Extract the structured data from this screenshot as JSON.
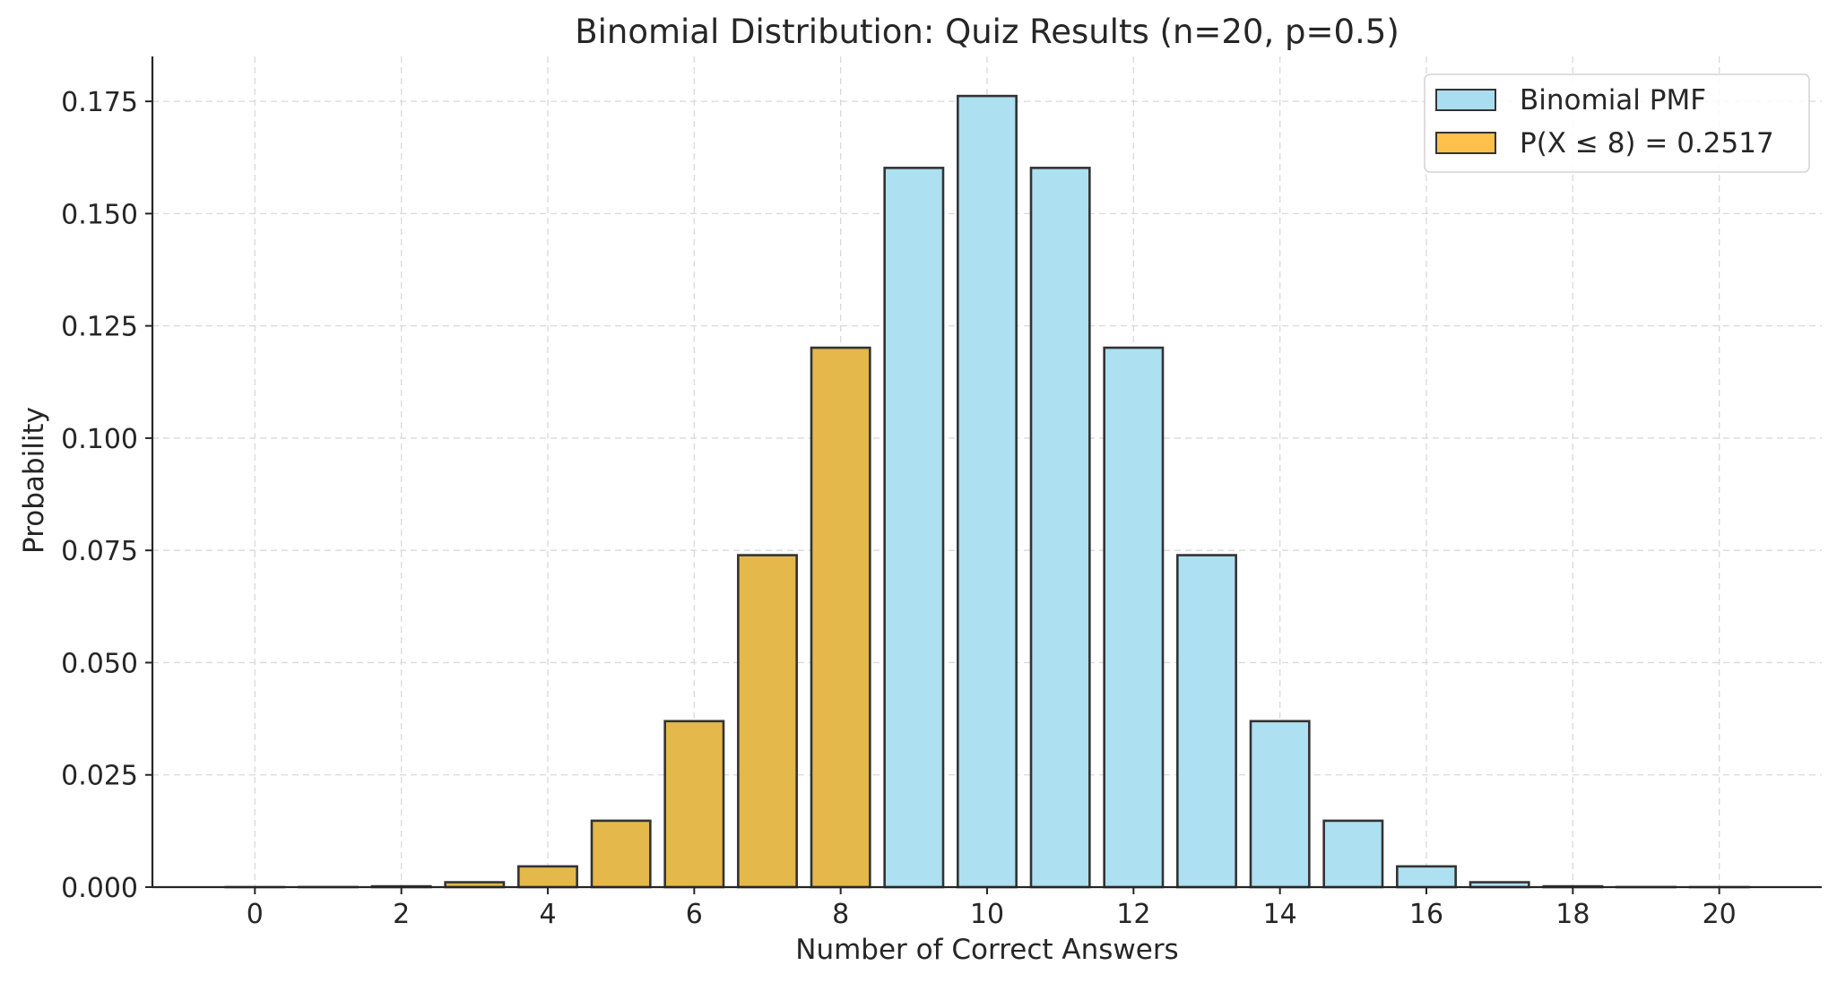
{
  "chart_data": {
    "type": "bar",
    "title": "Binomial Distribution: Quiz Results (n=20, p=0.5)",
    "xlabel": "Number of Correct Answers",
    "ylabel": "Probability",
    "x": [
      0,
      1,
      2,
      3,
      4,
      5,
      6,
      7,
      8,
      9,
      10,
      11,
      12,
      13,
      14,
      15,
      16,
      17,
      18,
      19,
      20
    ],
    "values": [
      1e-06,
      1.9e-05,
      0.000181,
      0.001087,
      0.004621,
      0.014786,
      0.036964,
      0.073929,
      0.120134,
      0.160179,
      0.176197,
      0.160179,
      0.120134,
      0.073929,
      0.036964,
      0.014786,
      0.004621,
      0.001087,
      0.000181,
      1.9e-05,
      1e-06
    ],
    "highlight_max_x": 8,
    "xlim": [
      -1.4,
      21.4
    ],
    "ylim": [
      0,
      0.185
    ],
    "xticks": [
      0,
      2,
      4,
      6,
      8,
      10,
      12,
      14,
      16,
      18,
      20
    ],
    "xtick_labels": [
      "0",
      "2",
      "4",
      "6",
      "8",
      "10",
      "12",
      "14",
      "16",
      "18",
      "20"
    ],
    "yticks": [
      0,
      0.025,
      0.05,
      0.075,
      0.1,
      0.125,
      0.15,
      0.175
    ],
    "ytick_labels": [
      "0.000",
      "0.025",
      "0.050",
      "0.075",
      "0.100",
      "0.125",
      "0.150",
      "0.175"
    ],
    "grid": true,
    "legend_position": "top-right",
    "legend": [
      {
        "label": "Binomial PMF",
        "color": "#87ceeb"
      },
      {
        "label": "P(X ≤ 8) = 0.2517",
        "color": "#ffa500"
      }
    ],
    "colors": {
      "pmf_fill": "#ade0f0",
      "highlight_fill": "#e4b84a",
      "edge": "#333333",
      "grid": "#d9d9d9",
      "axis": "#262626"
    }
  }
}
